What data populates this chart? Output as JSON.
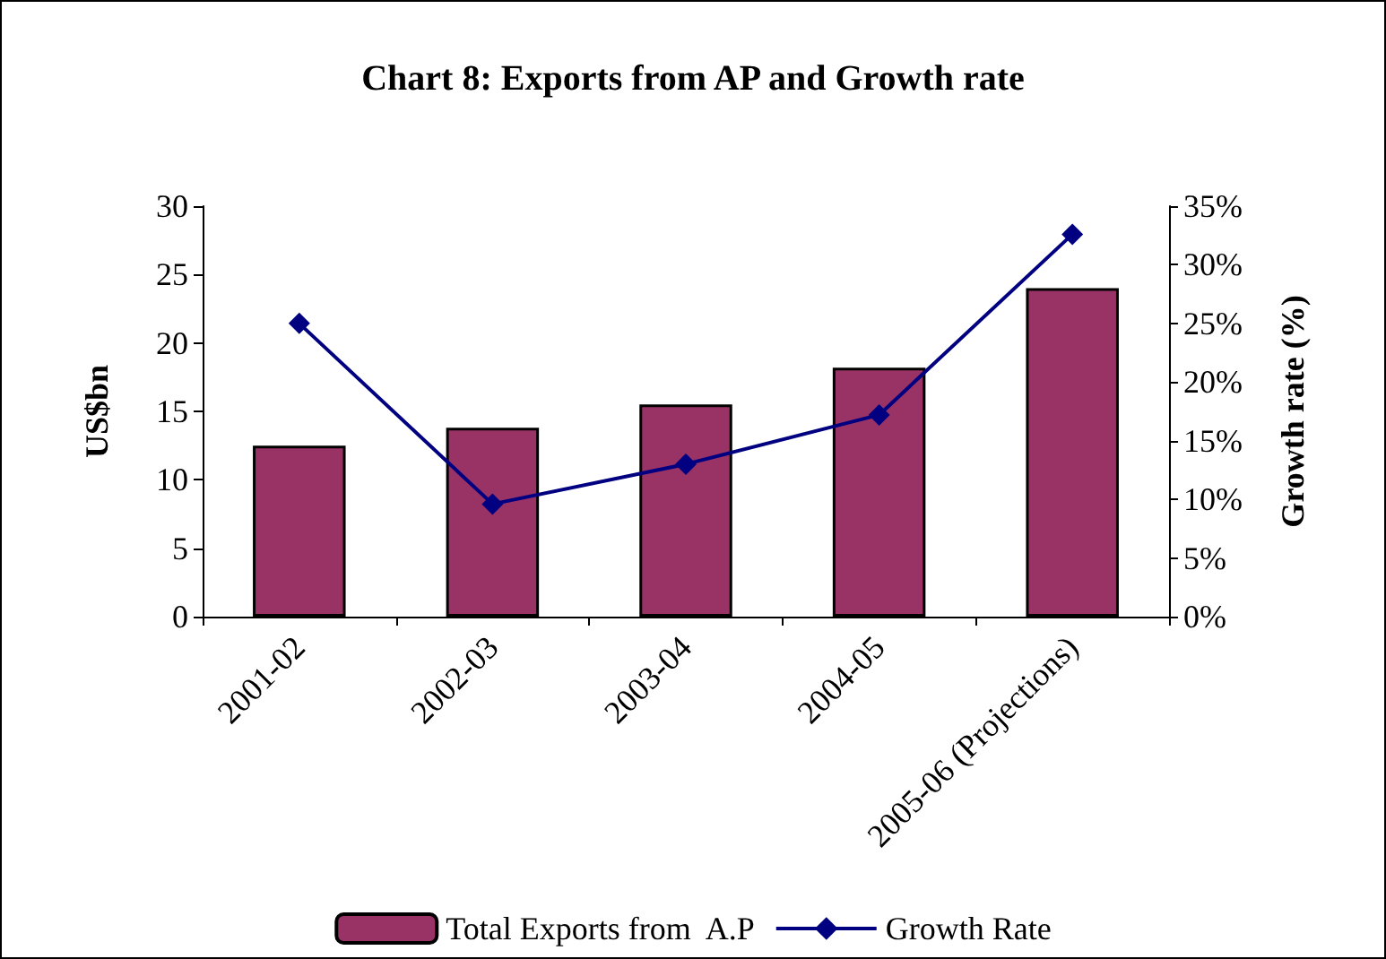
{
  "chart_data": {
    "type": "bar",
    "title": "Chart 8: Exports from AP and Growth rate",
    "ylabel": "US$bn",
    "y2label": "Growth rate (%)",
    "categories": [
      "2001-02",
      "2002-03",
      "2003-04",
      "2004-05",
      "2005-06 (Projections)"
    ],
    "series": [
      {
        "name": "Total Exports from  A.P",
        "color": "#993366",
        "values": [
          12.5,
          13.8,
          15.5,
          18.2,
          24.0
        ]
      },
      {
        "name": "Growth Rate",
        "type": "line",
        "axis": "y2",
        "color": "#000080",
        "marker": "diamond",
        "values": [
          25,
          9.6,
          13,
          17.2,
          32.6
        ]
      }
    ],
    "ylim": [
      0,
      30
    ],
    "yticks": [
      0,
      5,
      10,
      15,
      20,
      25,
      30
    ],
    "y2lim": [
      0,
      35
    ],
    "y2ticks": [
      {
        "value": 0,
        "label": "0%"
      },
      {
        "value": 5,
        "label": "5%"
      },
      {
        "value": 10,
        "label": "10%"
      },
      {
        "value": 15,
        "label": "15%"
      },
      {
        "value": 20,
        "label": "20%"
      },
      {
        "value": 25,
        "label": "25%"
      },
      {
        "value": 30,
        "label": "30%"
      },
      {
        "value": 35,
        "label": "35%"
      }
    ],
    "grid": false,
    "legend": "bottom"
  }
}
